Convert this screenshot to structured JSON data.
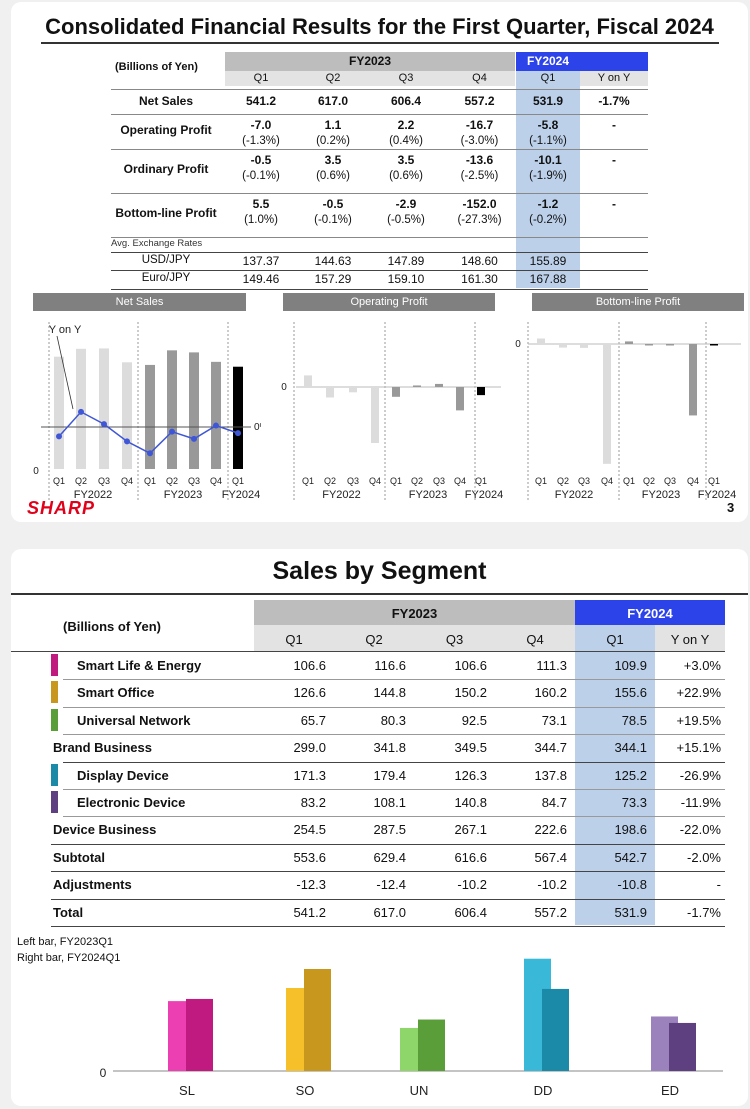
{
  "slide1": {
    "title": "Consolidated Financial Results for the First Quarter, Fiscal 2024",
    "unit_label": "(Billions of Yen)",
    "fy2023_label": "FY2023",
    "fy2024_label": "FY2024",
    "col_headers": [
      "Q1",
      "Q2",
      "Q3",
      "Q4",
      "Q1",
      "Y on Y"
    ],
    "rows": [
      {
        "label": "Net Sales",
        "values": [
          "541.2",
          "617.0",
          "606.4",
          "557.2",
          "531.9",
          "-1.7%"
        ],
        "sub": null
      },
      {
        "label": "Operating Profit",
        "values": [
          "-7.0",
          "1.1",
          "2.2",
          "-16.7",
          "-5.8",
          "-"
        ],
        "sub": [
          "(-1.3%)",
          "(0.2%)",
          "(0.4%)",
          "(-3.0%)",
          "(-1.1%)"
        ]
      },
      {
        "label": "Ordinary Profit",
        "values": [
          "-0.5",
          "3.5",
          "3.5",
          "-13.6",
          "-10.1",
          "-"
        ],
        "sub": [
          "(-0.1%)",
          "(0.6%)",
          "(0.6%)",
          "(-2.5%)",
          "(-1.9%)"
        ]
      },
      {
        "label": "Bottom-line Profit",
        "values": [
          "5.5",
          "-0.5",
          "-2.9",
          "-152.0",
          "-1.2",
          "-"
        ],
        "sub": [
          "(1.0%)",
          "(-0.1%)",
          "(-0.5%)",
          "(-27.3%)",
          "(-0.2%)"
        ]
      }
    ],
    "fx_label": "Avg. Exchange Rates",
    "fx_rows": [
      {
        "label": "USD/JPY",
        "values": [
          "137.37",
          "144.63",
          "147.89",
          "148.60",
          "155.89"
        ]
      },
      {
        "label": "Euro/JPY",
        "values": [
          "149.46",
          "157.29",
          "159.10",
          "161.30",
          "167.88"
        ]
      }
    ],
    "panels": [
      "Net Sales",
      "Operating Profit",
      "Bottom-line Profit"
    ],
    "yony_label": "Y on Y",
    "zero_label": "0",
    "pct_zero_label": "0%",
    "quarters": [
      "Q1",
      "Q2",
      "Q3",
      "Q4"
    ],
    "year_labels": [
      "FY2022",
      "FY2023",
      "FY2024"
    ],
    "logo": "SHARP",
    "page_number": "3"
  },
  "slide2": {
    "title": "Sales by Segment",
    "unit_label": "(Billions of Yen)",
    "fy2023_label": "FY2023",
    "fy2024_label": "FY2024",
    "col_headers": [
      "Q1",
      "Q2",
      "Q3",
      "Q4",
      "Q1",
      "Y on Y"
    ],
    "rows": [
      {
        "label": "Smart Life & Energy",
        "color": "#c0197f",
        "values": [
          "106.6",
          "116.6",
          "106.6",
          "111.3",
          "109.9",
          "+3.0%"
        ]
      },
      {
        "label": "Smart Office",
        "color": "#c8981e",
        "values": [
          "126.6",
          "144.8",
          "150.2",
          "160.2",
          "155.6",
          "+22.9%"
        ]
      },
      {
        "label": "Universal Network",
        "color": "#5a9e3a",
        "values": [
          "65.7",
          "80.3",
          "92.5",
          "73.1",
          "78.5",
          "+19.5%"
        ]
      },
      {
        "label": "Brand Business",
        "color": null,
        "values": [
          "299.0",
          "341.8",
          "349.5",
          "344.7",
          "344.1",
          "+15.1%"
        ]
      },
      {
        "label": "Display Device",
        "color": "#1a8aa8",
        "values": [
          "171.3",
          "179.4",
          "126.3",
          "137.8",
          "125.2",
          "-26.9%"
        ]
      },
      {
        "label": "Electronic Device",
        "color": "#5e3f80",
        "values": [
          "83.2",
          "108.1",
          "140.8",
          "84.7",
          "73.3",
          "-11.9%"
        ]
      },
      {
        "label": "Device Business",
        "color": null,
        "values": [
          "254.5",
          "287.5",
          "267.1",
          "222.6",
          "198.6",
          "-22.0%"
        ]
      },
      {
        "label": "Subtotal",
        "color": null,
        "values": [
          "553.6",
          "629.4",
          "616.6",
          "567.4",
          "542.7",
          "-2.0%"
        ]
      },
      {
        "label": "Adjustments",
        "color": null,
        "values": [
          "-12.3",
          "-12.4",
          "-10.2",
          "-10.2",
          "-10.8",
          "-"
        ]
      },
      {
        "label": "Total",
        "color": null,
        "values": [
          "541.2",
          "617.0",
          "606.4",
          "557.2",
          "531.9",
          "-1.7%"
        ]
      }
    ],
    "legend_left": "Left bar, FY2023Q1",
    "legend_right": "Right bar, FY2024Q1",
    "zero_label": "0"
  },
  "chart_data": [
    {
      "type": "bar",
      "title": "Net Sales",
      "categories": [
        "FY2022 Q1",
        "FY2022 Q2",
        "FY2022 Q3",
        "FY2022 Q4",
        "FY2023 Q1",
        "FY2023 Q2",
        "FY2023 Q3",
        "FY2023 Q4",
        "FY2024 Q1"
      ],
      "values": [
        584,
        625,
        627,
        555,
        541.2,
        617.0,
        606.4,
        557.2,
        531.9
      ],
      "series_line": {
        "name": "Y on Y",
        "values": [
          -2.6,
          4.2,
          0.8,
          -4.0,
          -7.3,
          -1.3,
          -3.3,
          0.4,
          -1.7
        ]
      },
      "colors": {
        "fy2022": "#dcdcdc",
        "fy2023": "#999999",
        "fy2024": "#000000",
        "line": "#3f57d6"
      }
    },
    {
      "type": "bar",
      "title": "Operating Profit",
      "categories": [
        "FY2022 Q1",
        "FY2022 Q2",
        "FY2022 Q3",
        "FY2022 Q4",
        "FY2023 Q1",
        "FY2023 Q2",
        "FY2023 Q3",
        "FY2023 Q4",
        "FY2024 Q1"
      ],
      "values": [
        8.3,
        -7.5,
        -3.8,
        -40.0,
        -7.0,
        1.1,
        2.2,
        -16.7,
        -5.8
      ]
    },
    {
      "type": "bar",
      "title": "Bottom-line Profit",
      "categories": [
        "FY2022 Q1",
        "FY2022 Q2",
        "FY2022 Q3",
        "FY2022 Q4",
        "FY2023 Q1",
        "FY2023 Q2",
        "FY2023 Q3",
        "FY2023 Q4",
        "FY2024 Q1"
      ],
      "values": [
        11.7,
        -7.7,
        -8.3,
        -255,
        5.5,
        -0.5,
        -2.9,
        -152.0,
        -1.2
      ]
    },
    {
      "type": "bar",
      "categories": [
        "SL",
        "SO",
        "UN",
        "DD",
        "ED"
      ],
      "series": [
        {
          "name": "FY2023Q1",
          "values": [
            106.6,
            126.6,
            65.7,
            171.3,
            83.2
          ],
          "colors": [
            "#ec3fb2",
            "#f5c02a",
            "#8fd66a",
            "#3ab8d8",
            "#9c82bc"
          ]
        },
        {
          "name": "FY2024Q1",
          "values": [
            109.9,
            155.6,
            78.5,
            125.2,
            73.3
          ],
          "colors": [
            "#c0197f",
            "#c8981e",
            "#5a9e3a",
            "#1a8aa8",
            "#5e3f80"
          ]
        }
      ]
    }
  ]
}
